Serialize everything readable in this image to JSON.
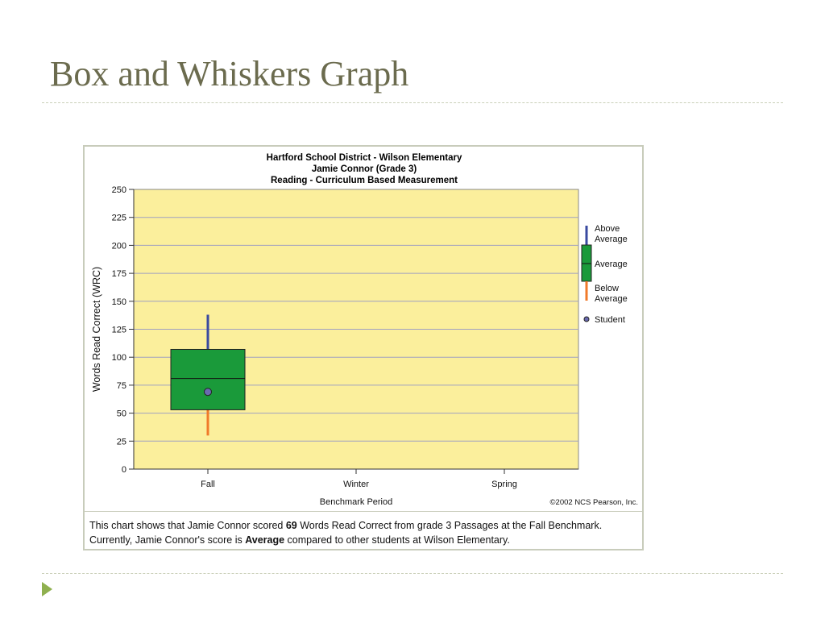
{
  "slide": {
    "title": "Box and Whiskers Graph"
  },
  "chart_data": {
    "type": "box",
    "title_lines": [
      "Hartford School District - Wilson Elementary",
      "Jamie Connor (Grade 3)",
      "Reading - Curriculum Based Measurement"
    ],
    "xlabel": "Benchmark Period",
    "ylabel": "Words Read Correct (WRC)",
    "ylim": [
      0,
      250
    ],
    "yticks": [
      0,
      25,
      50,
      75,
      100,
      125,
      150,
      175,
      200,
      225,
      250
    ],
    "categories": [
      "Fall",
      "Winter",
      "Spring"
    ],
    "boxes": [
      {
        "category": "Fall",
        "whisker_low": 30,
        "box_low": 53,
        "median": 81,
        "box_high": 107,
        "whisker_high": 138,
        "student": 69
      }
    ],
    "legend": {
      "placement": "right",
      "items": [
        {
          "label": "Above Average",
          "line1": "Above",
          "line2": "Average"
        },
        {
          "label": "Average"
        },
        {
          "label": "Below Average",
          "line1": "Below",
          "line2": "Average"
        },
        {
          "label": "Student"
        }
      ]
    },
    "copyright": "©2002 NCS Pearson, Inc.",
    "grid": true,
    "colors": {
      "plot_bg": "#fbef9c",
      "box": "#1a9a3a",
      "above_whisker": "#3a4aa0",
      "below_whisker": "#f07a2a",
      "student_marker": "#6a6ab0",
      "grid": "#a0a0c0"
    }
  },
  "caption": {
    "part1": "This chart shows that Jamie Connor scored ",
    "score": "69",
    "part2": " Words Read Correct from grade 3 Passages at the Fall Benchmark. Currently, Jamie Connor's score is ",
    "rating": "Average",
    "part3": " compared to other students at Wilson Elementary."
  }
}
